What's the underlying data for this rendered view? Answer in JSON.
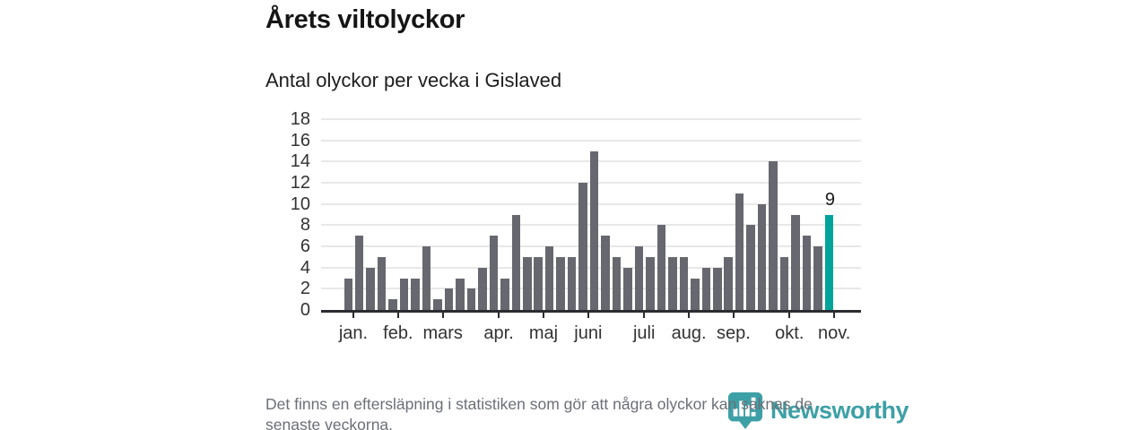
{
  "header": {
    "title": "Årets viltolyckor",
    "subtitle": "Antal olyckor per vecka i Gislaved"
  },
  "chart_data": {
    "type": "bar",
    "title": "Årets viltolyckor",
    "subtitle": "Antal olyckor per vecka i Gislaved",
    "x_unit": "vecka",
    "values": [
      3,
      7,
      4,
      5,
      1,
      3,
      3,
      6,
      1,
      2,
      3,
      2,
      4,
      7,
      3,
      9,
      5,
      5,
      6,
      5,
      5,
      12,
      15,
      7,
      5,
      4,
      6,
      5,
      8,
      5,
      5,
      3,
      4,
      4,
      5,
      11,
      8,
      10,
      14,
      5,
      9,
      7,
      6,
      9
    ],
    "highlight_index": 43,
    "highlight_label": "9",
    "months": [
      {
        "label": "jan.",
        "boundary": 1
      },
      {
        "label": "feb.",
        "boundary": 5
      },
      {
        "label": "mars",
        "boundary": 9
      },
      {
        "label": "apr.",
        "boundary": 14
      },
      {
        "label": "maj",
        "boundary": 18
      },
      {
        "label": "juni",
        "boundary": 22
      },
      {
        "label": "juli",
        "boundary": 27
      },
      {
        "label": "aug.",
        "boundary": 31
      },
      {
        "label": "sep.",
        "boundary": 35
      },
      {
        "label": "okt.",
        "boundary": 40
      },
      {
        "label": "nov.",
        "boundary": 44
      }
    ],
    "yticks": [
      0,
      2,
      4,
      6,
      8,
      10,
      12,
      14,
      16,
      18
    ],
    "ylim": [
      0,
      18
    ],
    "grid": true,
    "legend": "none",
    "colors": {
      "bar": "#67686f",
      "highlight": "#00a49b",
      "gridline": "#e8e8e8",
      "axis": "#2b2c30"
    }
  },
  "footer": {
    "lines": [
      "Det finns en eftersläpning i statistiken som gör att några olyckor kan saknas de",
      "senaste veckorna."
    ],
    "logo_text": "Newsworthy"
  }
}
